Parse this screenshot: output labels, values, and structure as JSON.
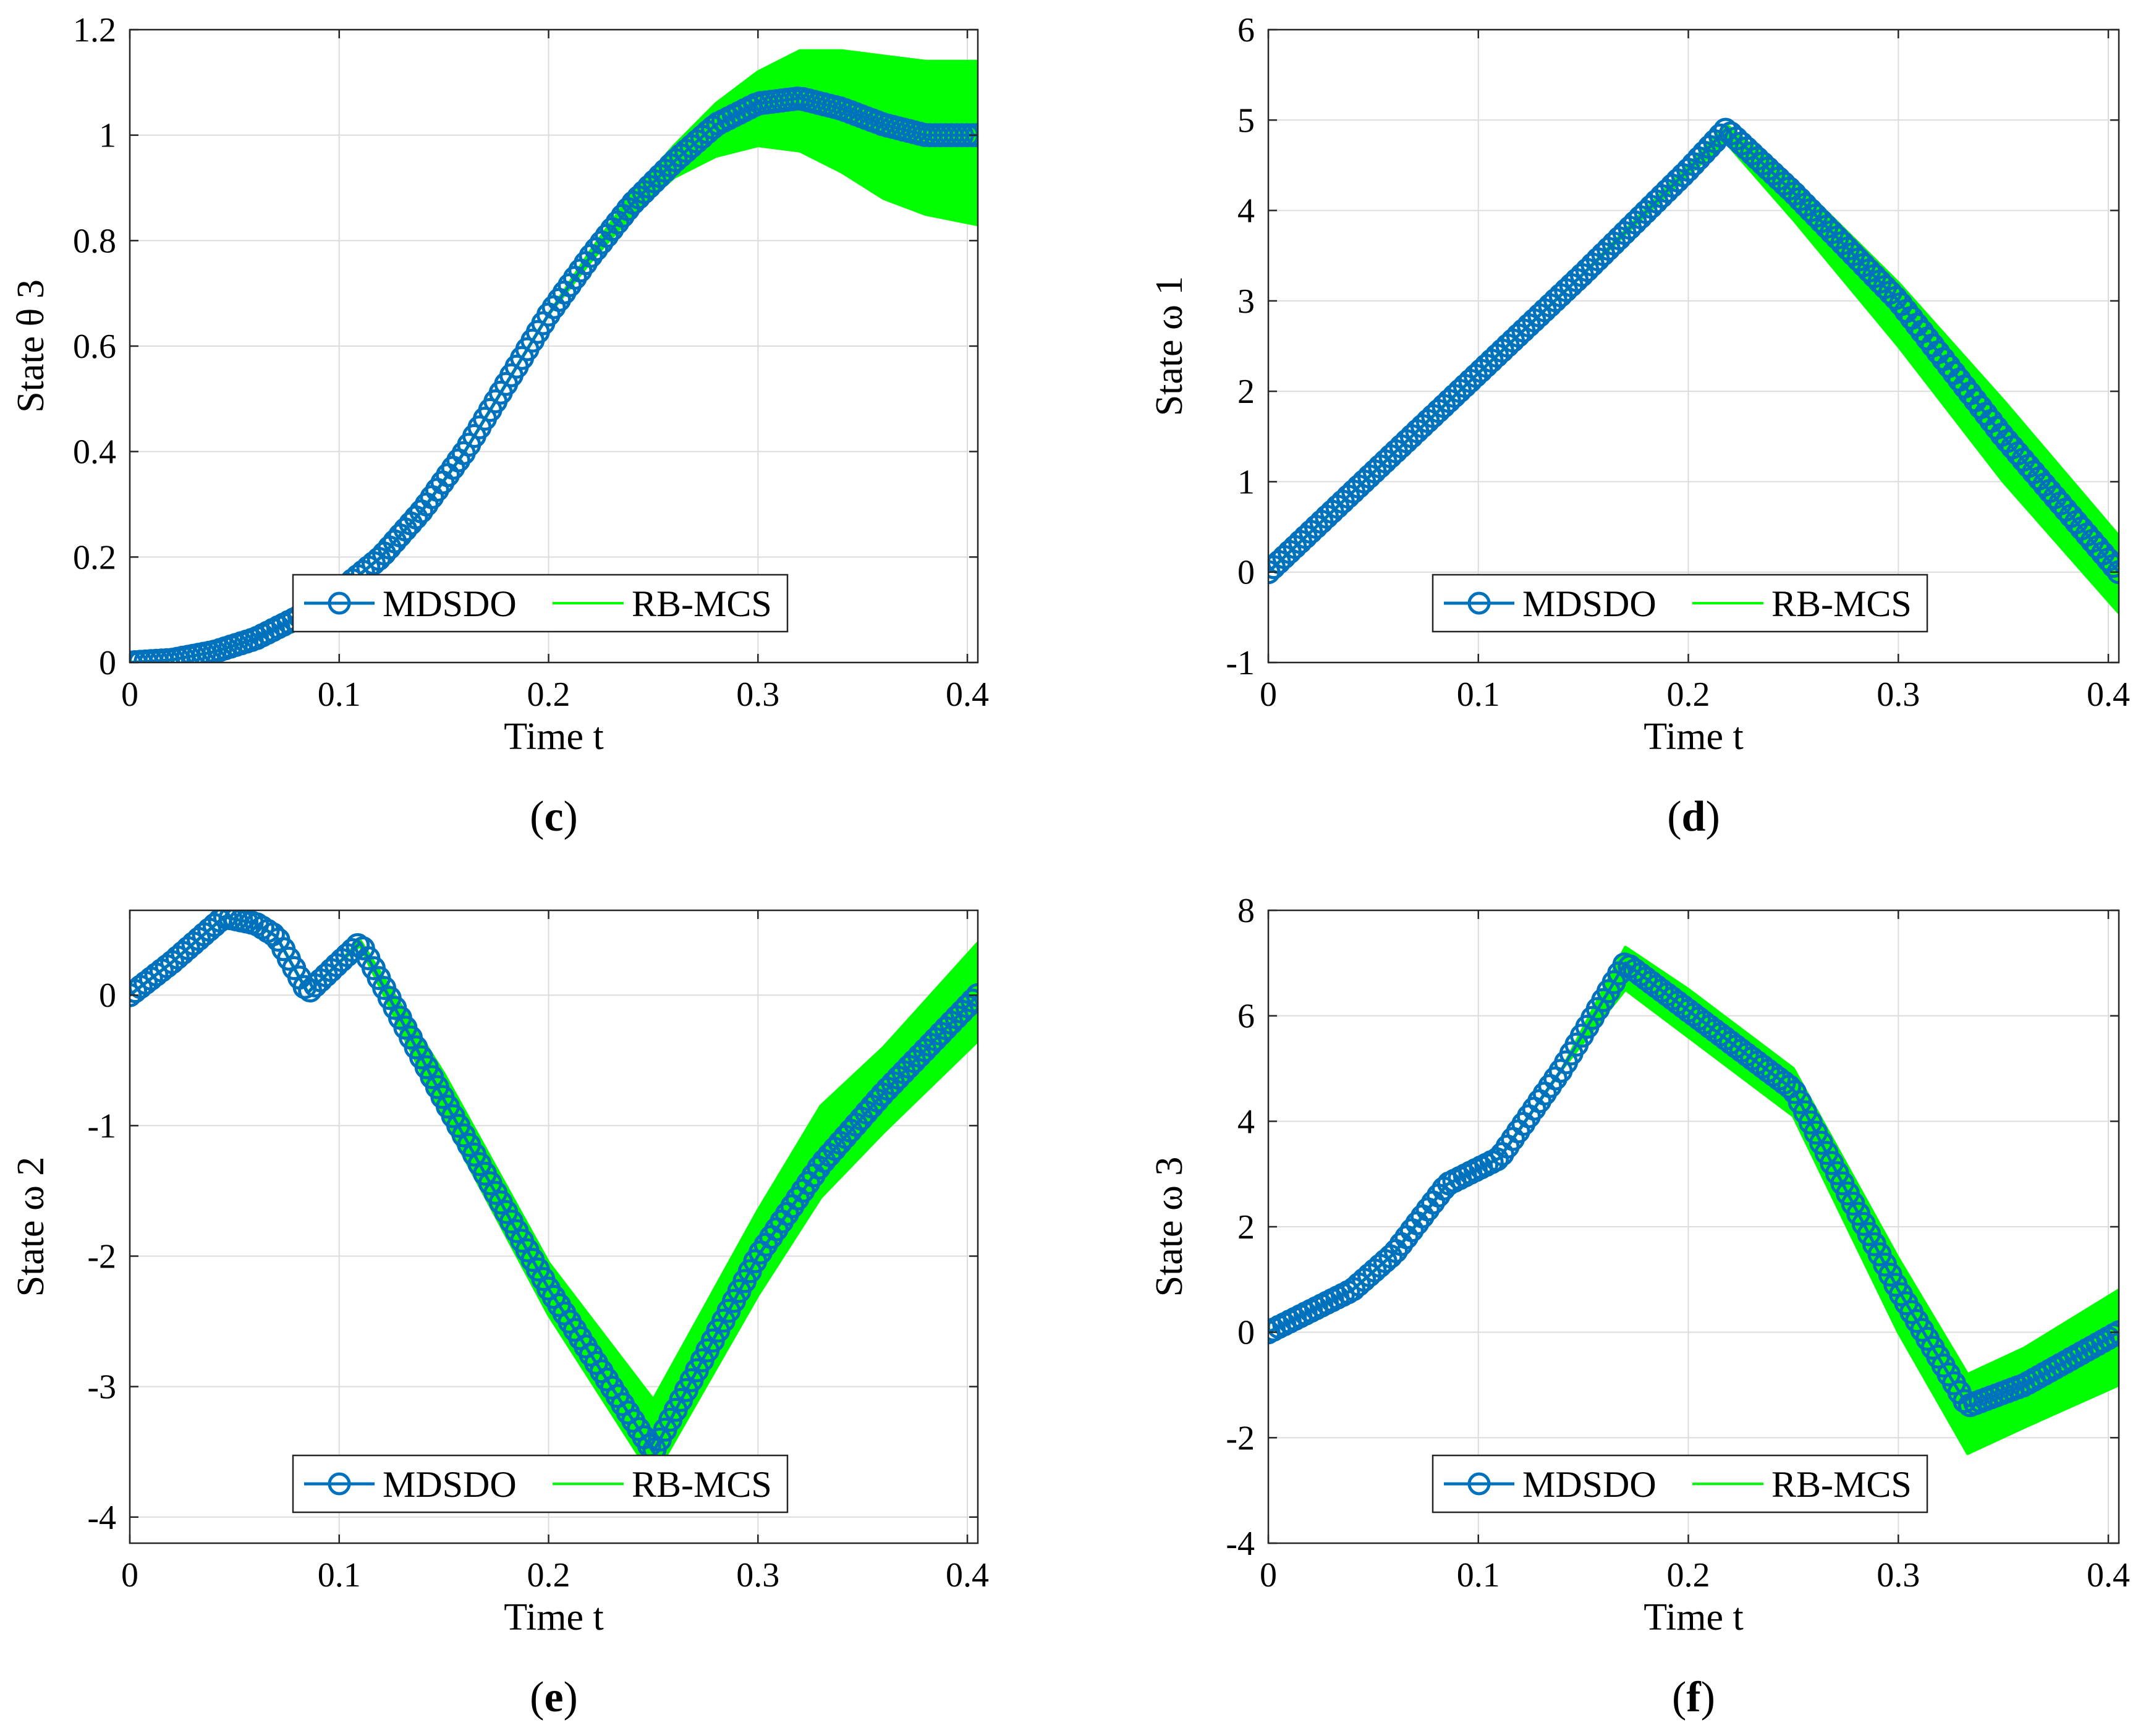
{
  "chart_data": [
    {
      "type": "line",
      "panel": "c",
      "caption": {
        "open": "(",
        "letter": "c",
        "close": ")"
      },
      "xlabel": "Time t",
      "ylabel": "State θ 3",
      "xlim": [
        0,
        0.405
      ],
      "ylim": [
        0,
        1.2
      ],
      "xticks": [
        0,
        0.1,
        0.2,
        0.3,
        0.4
      ],
      "xtick_labels": [
        "0",
        "0.1",
        "0.2",
        "0.3",
        "0.4"
      ],
      "yticks": [
        0,
        0.2,
        0.4,
        0.6,
        0.8,
        1,
        1.2
      ],
      "ytick_labels": [
        "0",
        "0.2",
        "0.4",
        "0.6",
        "0.8",
        "1",
        "1.2"
      ],
      "grid": true,
      "legend": {
        "position": "bottom-center",
        "entries": [
          "MDSDO",
          "RB-MCS"
        ]
      },
      "series": [
        {
          "name": "MDSDO",
          "color": "#0072BD",
          "marker": "circle",
          "x": [
            0,
            0.02,
            0.04,
            0.06,
            0.08,
            0.1,
            0.12,
            0.14,
            0.16,
            0.18,
            0.2,
            0.22,
            0.24,
            0.26,
            0.28,
            0.3,
            0.32,
            0.34,
            0.36,
            0.38,
            0.405
          ],
          "y": [
            0,
            0.005,
            0.02,
            0.045,
            0.085,
            0.135,
            0.2,
            0.29,
            0.4,
            0.53,
            0.66,
            0.77,
            0.87,
            0.95,
            1.02,
            1.06,
            1.07,
            1.05,
            1.02,
            1.0,
            1.0
          ]
        },
        {
          "name": "RB-MCS",
          "color": "#00FF00",
          "x": [
            0,
            0.02,
            0.04,
            0.06,
            0.08,
            0.1,
            0.12,
            0.14,
            0.16,
            0.18,
            0.2,
            0.22,
            0.24,
            0.26,
            0.28,
            0.3,
            0.32,
            0.34,
            0.36,
            0.38,
            0.405
          ],
          "y_low": [
            0,
            0.005,
            0.02,
            0.045,
            0.085,
            0.135,
            0.2,
            0.29,
            0.4,
            0.53,
            0.66,
            0.76,
            0.85,
            0.92,
            0.96,
            0.98,
            0.97,
            0.93,
            0.88,
            0.85,
            0.83
          ],
          "y_high": [
            0,
            0.005,
            0.02,
            0.045,
            0.085,
            0.135,
            0.2,
            0.29,
            0.4,
            0.53,
            0.66,
            0.78,
            0.89,
            0.98,
            1.06,
            1.12,
            1.16,
            1.16,
            1.15,
            1.14,
            1.14
          ]
        }
      ]
    },
    {
      "type": "line",
      "panel": "d",
      "caption": {
        "open": "(",
        "letter": "d",
        "close": ")"
      },
      "xlabel": "Time t",
      "ylabel": "State ω 1",
      "xlim": [
        0,
        0.405
      ],
      "ylim": [
        -1,
        6
      ],
      "xticks": [
        0,
        0.1,
        0.2,
        0.3,
        0.4
      ],
      "xtick_labels": [
        "0",
        "0.1",
        "0.2",
        "0.3",
        "0.4"
      ],
      "yticks": [
        -1,
        0,
        1,
        2,
        3,
        4,
        5,
        6
      ],
      "ytick_labels": [
        "-1",
        "0",
        "1",
        "2",
        "3",
        "4",
        "5",
        "6"
      ],
      "grid": true,
      "legend": {
        "position": "bottom-center",
        "entries": [
          "MDSDO",
          "RB-MCS"
        ]
      },
      "series": [
        {
          "name": "MDSDO",
          "color": "#0072BD",
          "marker": "circle",
          "x": [
            0,
            0.05,
            0.1,
            0.15,
            0.2,
            0.218,
            0.25,
            0.3,
            0.35,
            0.405
          ],
          "y": [
            0,
            1.1,
            2.2,
            3.3,
            4.45,
            4.9,
            4.2,
            3.0,
            1.5,
            0
          ]
        },
        {
          "name": "RB-MCS",
          "color": "#00FF00",
          "x": [
            0,
            0.05,
            0.1,
            0.15,
            0.2,
            0.218,
            0.25,
            0.3,
            0.35,
            0.405
          ],
          "y_low": [
            0,
            1.1,
            2.2,
            3.3,
            4.4,
            4.75,
            3.9,
            2.5,
            1.0,
            -0.45
          ],
          "y_high": [
            0,
            1.1,
            2.2,
            3.3,
            4.5,
            4.95,
            4.35,
            3.2,
            1.9,
            0.4
          ]
        }
      ]
    },
    {
      "type": "line",
      "panel": "e",
      "caption": {
        "open": "(",
        "letter": "e",
        "close": ")"
      },
      "xlabel": "Time t",
      "ylabel": "State ω 2",
      "xlim": [
        0,
        0.405
      ],
      "ylim": [
        -4.2,
        0.65
      ],
      "xticks": [
        0,
        0.1,
        0.2,
        0.3,
        0.4
      ],
      "xtick_labels": [
        "0",
        "0.1",
        "0.2",
        "0.3",
        "0.4"
      ],
      "yticks": [
        -4,
        -3,
        -2,
        -1,
        0
      ],
      "ytick_labels": [
        "-4",
        "-3",
        "-2",
        "-1",
        "0"
      ],
      "grid": true,
      "legend": {
        "position": "bottom-center",
        "entries": [
          "MDSDO",
          "RB-MCS"
        ]
      },
      "series": [
        {
          "name": "MDSDO",
          "color": "#0072BD",
          "marker": "circle",
          "x": [
            0,
            0.02,
            0.045,
            0.06,
            0.07,
            0.085,
            0.1,
            0.11,
            0.15,
            0.2,
            0.25,
            0.3,
            0.33,
            0.36,
            0.405
          ],
          "y": [
            0,
            0.25,
            0.6,
            0.55,
            0.45,
            0.02,
            0.25,
            0.4,
            -0.8,
            -2.25,
            -3.5,
            -2.0,
            -1.3,
            -0.75,
            0
          ]
        },
        {
          "name": "RB-MCS",
          "color": "#00FF00",
          "x": [
            0,
            0.02,
            0.045,
            0.06,
            0.07,
            0.085,
            0.1,
            0.11,
            0.15,
            0.2,
            0.25,
            0.3,
            0.33,
            0.36,
            0.405
          ],
          "y_low": [
            0,
            0.25,
            0.6,
            0.55,
            0.45,
            0.02,
            0.25,
            0.38,
            -0.95,
            -2.45,
            -3.7,
            -2.3,
            -1.55,
            -1.05,
            -0.35
          ],
          "y_high": [
            0,
            0.25,
            0.6,
            0.55,
            0.45,
            0.02,
            0.25,
            0.42,
            -0.6,
            -2.05,
            -3.1,
            -1.65,
            -0.85,
            -0.4,
            0.4
          ]
        }
      ]
    },
    {
      "type": "line",
      "panel": "f",
      "caption": {
        "open": "(",
        "letter": "f",
        "close": ")"
      },
      "xlabel": "Time t",
      "ylabel": "State ω 3",
      "xlim": [
        0,
        0.405
      ],
      "ylim": [
        -4,
        8
      ],
      "xticks": [
        0,
        0.1,
        0.2,
        0.3,
        0.4
      ],
      "xtick_labels": [
        "0",
        "0.1",
        "0.2",
        "0.3",
        "0.4"
      ],
      "yticks": [
        -4,
        -2,
        0,
        2,
        4,
        6,
        8
      ],
      "ytick_labels": [
        "-4",
        "-2",
        "0",
        "2",
        "4",
        "6",
        "8"
      ],
      "grid": true,
      "legend": {
        "position": "bottom-center",
        "entries": [
          "MDSDO",
          "RB-MCS"
        ]
      },
      "series": [
        {
          "name": "MDSDO",
          "color": "#0072BD",
          "marker": "circle",
          "x": [
            0,
            0.04,
            0.06,
            0.085,
            0.11,
            0.14,
            0.17,
            0.2,
            0.25,
            0.3,
            0.333,
            0.36,
            0.405
          ],
          "y": [
            0,
            0.8,
            1.5,
            2.8,
            3.3,
            5.0,
            7.0,
            6.1,
            4.6,
            0.8,
            -1.4,
            -1.0,
            0
          ]
        },
        {
          "name": "RB-MCS",
          "color": "#00FF00",
          "x": [
            0,
            0.04,
            0.06,
            0.085,
            0.11,
            0.14,
            0.17,
            0.2,
            0.25,
            0.3,
            0.333,
            0.36,
            0.405
          ],
          "y_low": [
            0,
            0.8,
            1.5,
            2.8,
            3.3,
            5.0,
            6.5,
            5.6,
            4.1,
            0.0,
            -2.3,
            -1.8,
            -1.0
          ],
          "y_high": [
            0,
            0.8,
            1.5,
            2.8,
            3.3,
            5.0,
            7.3,
            6.5,
            5.0,
            1.4,
            -0.8,
            -0.3,
            0.8
          ]
        }
      ]
    }
  ]
}
